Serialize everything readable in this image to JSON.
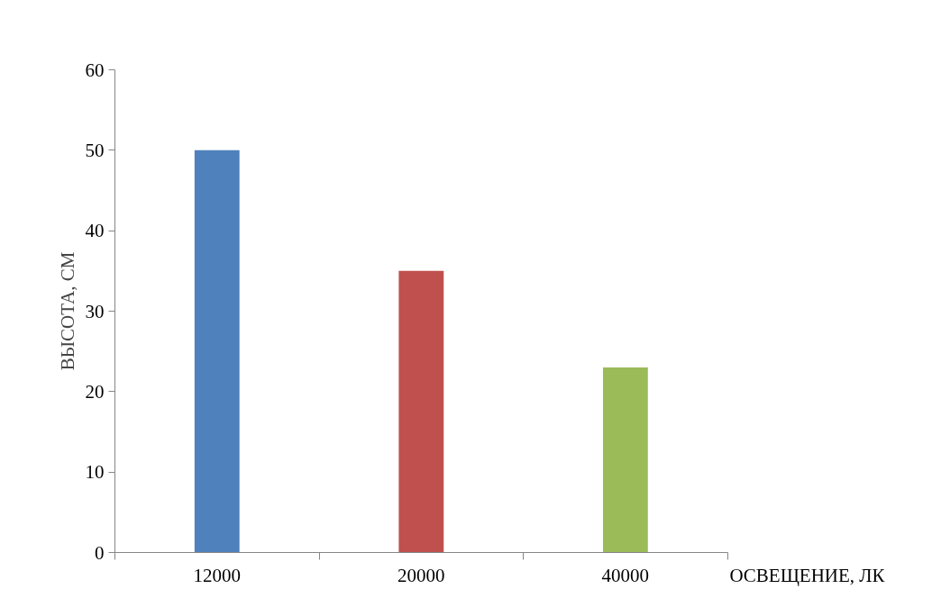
{
  "chart_data": {
    "type": "bar",
    "xlabel": "ОСВЕЩЕНИЕ, ЛК",
    "ylabel": "ВЫСОТА, СМ",
    "categories": [
      "12000",
      "20000",
      "40000"
    ],
    "values": [
      50,
      35,
      23
    ],
    "colors": [
      "#4f81bd",
      "#c0504d",
      "#9bbb59"
    ],
    "ylim": [
      0,
      60
    ],
    "yticks": [
      0,
      10,
      20,
      30,
      40,
      50,
      60
    ],
    "grid": false
  }
}
